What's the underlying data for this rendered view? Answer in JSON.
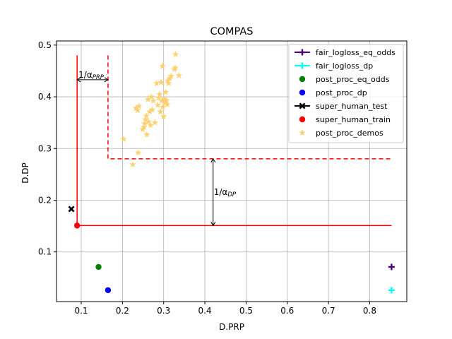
{
  "chart_data": {
    "type": "scatter",
    "title": "COMPAS",
    "xlabel": "D.PRP",
    "ylabel": "D.DP",
    "xlim": [
      0.04,
      0.89
    ],
    "ylim": [
      0.004,
      0.508
    ],
    "xticks": [
      0.1,
      0.2,
      0.3,
      0.4,
      0.5,
      0.6,
      0.7,
      0.8
    ],
    "yticks": [
      0.1,
      0.2,
      0.3,
      0.4,
      0.5
    ],
    "xtick_labels": [
      "0.1",
      "0.2",
      "0.3",
      "0.4",
      "0.5",
      "0.6",
      "0.7",
      "0.8"
    ],
    "ytick_labels": [
      "0.1",
      "0.2",
      "0.3",
      "0.4",
      "0.5"
    ],
    "grid": true,
    "legend_position": "top-right",
    "series": [
      {
        "name": "fair_logloss_eq_odds",
        "marker": "plus",
        "color": "#4b0082",
        "points": [
          [
            0.853,
            0.071
          ]
        ]
      },
      {
        "name": "fair_logloss_dp",
        "marker": "plus",
        "color": "#00ffff",
        "points": [
          [
            0.853,
            0.026
          ]
        ]
      },
      {
        "name": "post_proc_eq_odds",
        "marker": "circle",
        "color": "#008000",
        "points": [
          [
            0.142,
            0.071
          ]
        ]
      },
      {
        "name": "post_proc_dp",
        "marker": "circle",
        "color": "#0000ff",
        "points": [
          [
            0.165,
            0.026
          ]
        ]
      },
      {
        "name": "super_human_test",
        "marker": "x",
        "color": "#000000",
        "points": [
          [
            0.076,
            0.183
          ]
        ]
      },
      {
        "name": "super_human_train",
        "marker": "circle",
        "color": "#ff0000",
        "points": [
          [
            0.09,
            0.151
          ]
        ]
      },
      {
        "name": "post_proc_demos",
        "marker": "star",
        "color": "#ffd070",
        "points": [
          [
            0.203,
            0.318
          ],
          [
            0.225,
            0.269
          ],
          [
            0.238,
            0.292
          ],
          [
            0.233,
            0.378
          ],
          [
            0.237,
            0.374
          ],
          [
            0.24,
            0.382
          ],
          [
            0.249,
            0.337
          ],
          [
            0.252,
            0.341
          ],
          [
            0.254,
            0.348
          ],
          [
            0.256,
            0.356
          ],
          [
            0.258,
            0.363
          ],
          [
            0.259,
            0.327
          ],
          [
            0.262,
            0.395
          ],
          [
            0.263,
            0.352
          ],
          [
            0.266,
            0.371
          ],
          [
            0.268,
            0.345
          ],
          [
            0.27,
            0.4
          ],
          [
            0.272,
            0.375
          ],
          [
            0.275,
            0.392
          ],
          [
            0.279,
            0.35
          ],
          [
            0.283,
            0.426
          ],
          [
            0.286,
            0.384
          ],
          [
            0.288,
            0.398
          ],
          [
            0.29,
            0.405
          ],
          [
            0.292,
            0.371
          ],
          [
            0.294,
            0.428
          ],
          [
            0.295,
            0.392
          ],
          [
            0.297,
            0.459
          ],
          [
            0.298,
            0.38
          ],
          [
            0.3,
            0.362
          ],
          [
            0.301,
            0.396
          ],
          [
            0.303,
            0.388
          ],
          [
            0.305,
            0.409
          ],
          [
            0.307,
            0.393
          ],
          [
            0.309,
            0.385
          ],
          [
            0.31,
            0.431
          ],
          [
            0.312,
            0.426
          ],
          [
            0.315,
            0.436
          ],
          [
            0.318,
            0.44
          ],
          [
            0.326,
            0.453
          ],
          [
            0.328,
            0.456
          ],
          [
            0.329,
            0.482
          ],
          [
            0.337,
            0.441
          ]
        ]
      }
    ],
    "boundaries": [
      {
        "name": "solid-boundary",
        "style": "solid",
        "color": "#ff0000",
        "x": 0.09,
        "y": 0.151,
        "x_end": 0.853,
        "y_top": 0.48
      },
      {
        "name": "dashed-boundary",
        "style": "dashed",
        "color": "#ff0000",
        "x": 0.165,
        "y": 0.28,
        "x_end": 0.853,
        "y_top": 0.48
      }
    ],
    "annotations": [
      {
        "name": "alpha-prp",
        "text_main": "1/α",
        "text_sub": "PRP",
        "x_from": 0.09,
        "x_to": 0.165,
        "y": 0.433
      },
      {
        "name": "alpha-dp",
        "text_main": "1/α",
        "text_sub": "DP",
        "x": 0.42,
        "y_from": 0.151,
        "y_to": 0.28
      }
    ]
  }
}
